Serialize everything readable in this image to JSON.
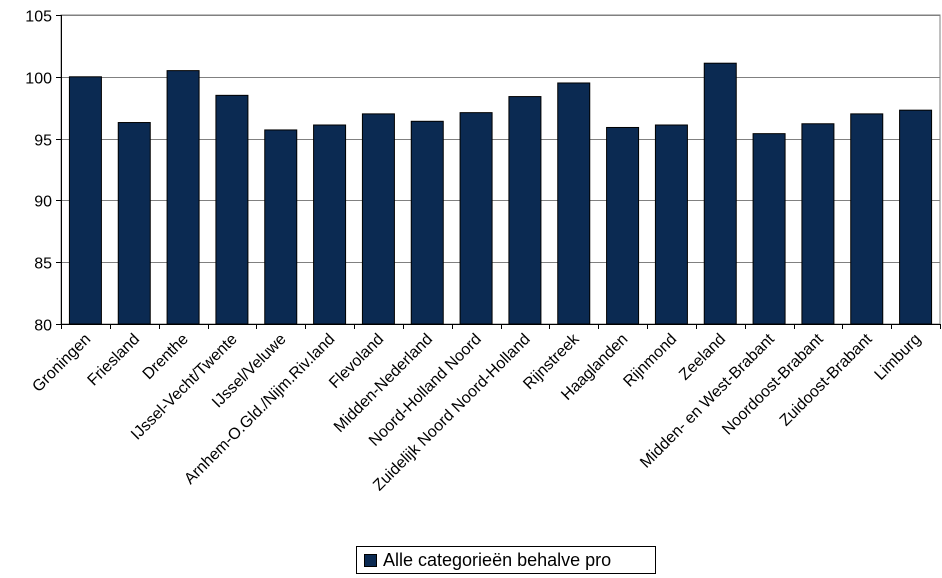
{
  "chart_data": {
    "type": "bar",
    "categories": [
      "Groningen",
      "Friesland",
      "Drenthe",
      "IJssel-Vecht/Twente",
      "IJssel/Veluwe",
      "Arnhem-O.Gld./Nijm.Riv.land",
      "Flevoland",
      "Midden-Nederland",
      "Noord-Holland Noord",
      "Zuidelijk Noord Noord-Holland",
      "Rijnstreek",
      "Haaglanden",
      "Rijnmond",
      "Zeeland",
      "Midden- en West-Brabant",
      "Noordoost-Brabant",
      "Zuidoost-Brabant",
      "Limburg"
    ],
    "series": [
      {
        "name": "Alle categorieën behalve pro",
        "color": "#0b2a52",
        "values": [
          100.0,
          96.3,
          100.5,
          98.5,
          95.7,
          96.1,
          97.0,
          96.4,
          97.1,
          98.4,
          99.5,
          95.9,
          96.1,
          101.1,
          95.4,
          96.2,
          97.0,
          97.3
        ]
      }
    ],
    "ylim": [
      80,
      105
    ],
    "yticks": [
      80,
      85,
      90,
      95,
      100,
      105
    ],
    "grid": true,
    "legend": "bottom",
    "title": "",
    "xlabel": "",
    "ylabel": ""
  },
  "legend": {
    "label": "Alle categorieën behalve pro"
  }
}
